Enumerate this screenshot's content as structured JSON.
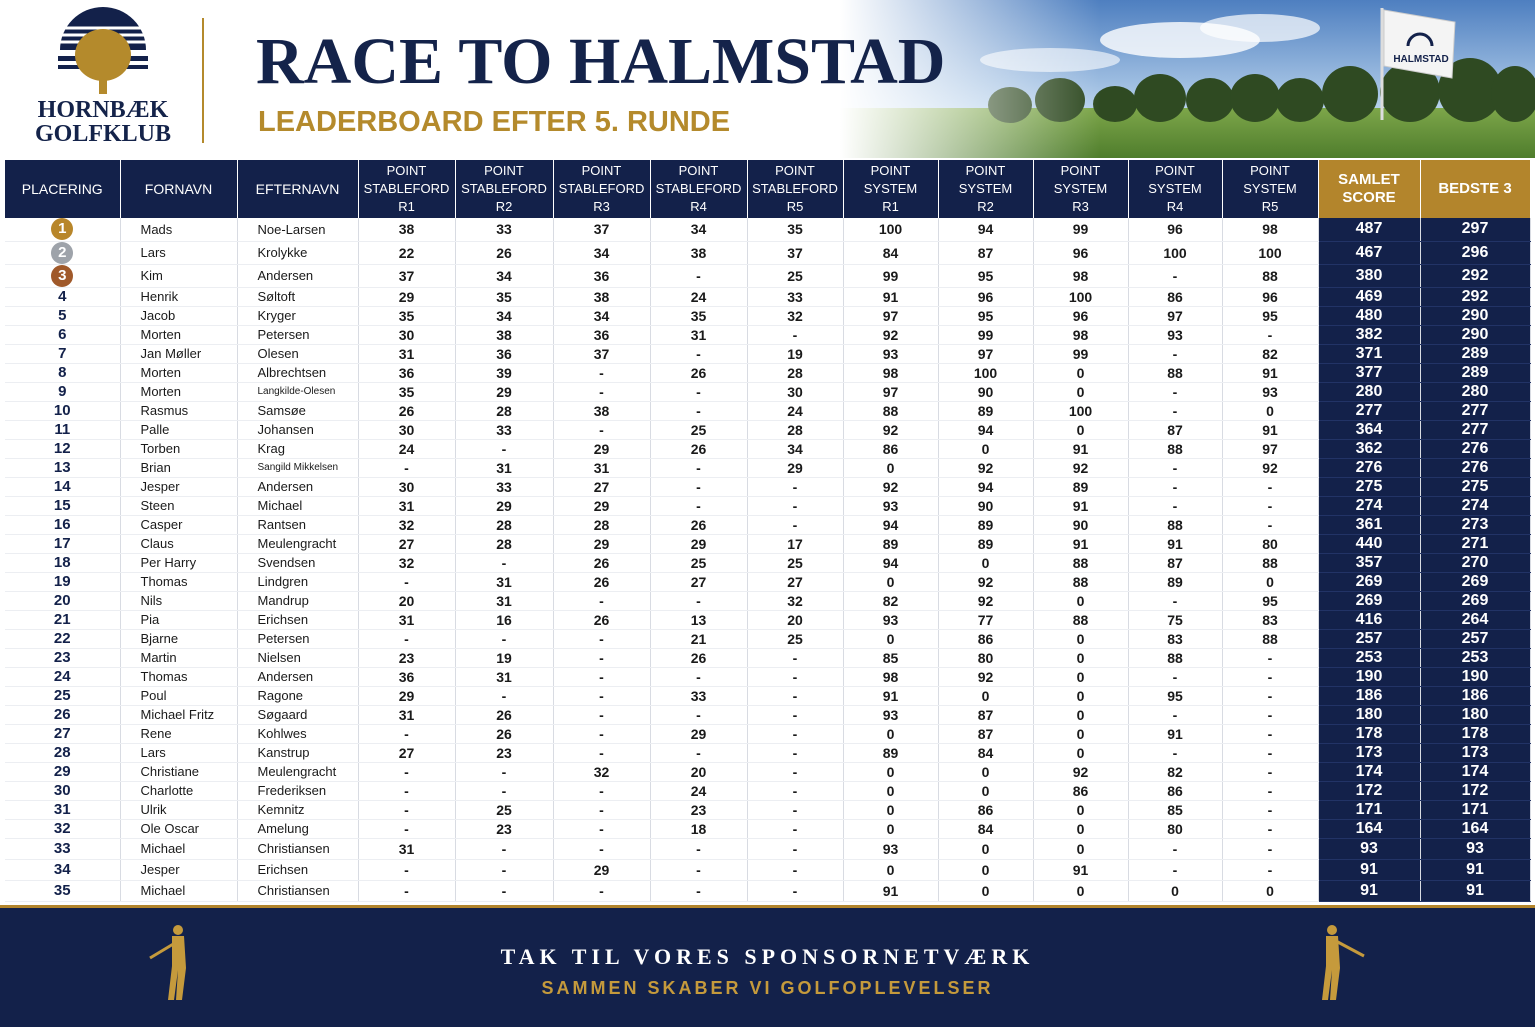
{
  "header": {
    "club_name": "HORNBÆK GOLFKLUB",
    "title": "RACE TO HALMSTAD",
    "subtitle": "LEADERBOARD EFTER 5. RUNDE",
    "flag_text": "HALMSTAD"
  },
  "table": {
    "columns": [
      "PLACERING",
      "FORNAVN",
      "EFTERNAVN",
      "POINT STABLEFORD R1",
      "POINT STABLEFORD R2",
      "POINT STABLEFORD R3",
      "POINT STABLEFORD R4",
      "POINT STABLEFORD R5",
      "POINT SYSTEM R1",
      "POINT SYSTEM R2",
      "POINT SYSTEM R3",
      "POINT SYSTEM R4",
      "POINT SYSTEM R5",
      "SAMLET SCORE",
      "BEDSTE 3"
    ],
    "rows": [
      [
        "1",
        "Mads",
        "Noe-Larsen",
        "38",
        "33",
        "37",
        "34",
        "35",
        "100",
        "94",
        "99",
        "96",
        "98",
        "487",
        "297"
      ],
      [
        "2",
        "Lars",
        "Krolykke",
        "22",
        "26",
        "34",
        "38",
        "37",
        "84",
        "87",
        "96",
        "100",
        "100",
        "467",
        "296"
      ],
      [
        "3",
        "Kim",
        "Andersen",
        "37",
        "34",
        "36",
        "-",
        "25",
        "99",
        "95",
        "98",
        "-",
        "88",
        "380",
        "292"
      ],
      [
        "4",
        "Henrik",
        "Søltoft",
        "29",
        "35",
        "38",
        "24",
        "33",
        "91",
        "96",
        "100",
        "86",
        "96",
        "469",
        "292"
      ],
      [
        "5",
        "Jacob",
        "Kryger",
        "35",
        "34",
        "34",
        "35",
        "32",
        "97",
        "95",
        "96",
        "97",
        "95",
        "480",
        "290"
      ],
      [
        "6",
        "Morten",
        "Petersen",
        "30",
        "38",
        "36",
        "31",
        "-",
        "92",
        "99",
        "98",
        "93",
        "-",
        "382",
        "290"
      ],
      [
        "7",
        "Jan Møller",
        "Olesen",
        "31",
        "36",
        "37",
        "-",
        "19",
        "93",
        "97",
        "99",
        "-",
        "82",
        "371",
        "289"
      ],
      [
        "8",
        "Morten",
        "Albrechtsen",
        "36",
        "39",
        "-",
        "26",
        "28",
        "98",
        "100",
        "0",
        "88",
        "91",
        "377",
        "289"
      ],
      [
        "9",
        "Morten",
        "Langkilde-Olesen",
        "35",
        "29",
        "-",
        "-",
        "30",
        "97",
        "90",
        "0",
        "-",
        "93",
        "280",
        "280"
      ],
      [
        "10",
        "Rasmus",
        "Samsøe",
        "26",
        "28",
        "38",
        "-",
        "24",
        "88",
        "89",
        "100",
        "-",
        "0",
        "277",
        "277"
      ],
      [
        "11",
        "Palle",
        "Johansen",
        "30",
        "33",
        "-",
        "25",
        "28",
        "92",
        "94",
        "0",
        "87",
        "91",
        "364",
        "277"
      ],
      [
        "12",
        "Torben",
        "Krag",
        "24",
        "-",
        "29",
        "26",
        "34",
        "86",
        "0",
        "91",
        "88",
        "97",
        "362",
        "276"
      ],
      [
        "13",
        "Brian",
        "Sangild Mikkelsen",
        "-",
        "31",
        "31",
        "-",
        "29",
        "0",
        "92",
        "92",
        "-",
        "92",
        "276",
        "276"
      ],
      [
        "14",
        "Jesper",
        "Andersen",
        "30",
        "33",
        "27",
        "-",
        "-",
        "92",
        "94",
        "89",
        "-",
        "-",
        "275",
        "275"
      ],
      [
        "15",
        "Steen",
        "Michael",
        "31",
        "29",
        "29",
        "-",
        "-",
        "93",
        "90",
        "91",
        "-",
        "-",
        "274",
        "274"
      ],
      [
        "16",
        "Casper",
        "Rantsen",
        "32",
        "28",
        "28",
        "26",
        "-",
        "94",
        "89",
        "90",
        "88",
        "-",
        "361",
        "273"
      ],
      [
        "17",
        "Claus",
        "Meulengracht",
        "27",
        "28",
        "29",
        "29",
        "17",
        "89",
        "89",
        "91",
        "91",
        "80",
        "440",
        "271"
      ],
      [
        "18",
        "Per Harry",
        "Svendsen",
        "32",
        "-",
        "26",
        "25",
        "25",
        "94",
        "0",
        "88",
        "87",
        "88",
        "357",
        "270"
      ],
      [
        "19",
        "Thomas",
        "Lindgren",
        "-",
        "31",
        "26",
        "27",
        "27",
        "0",
        "92",
        "88",
        "89",
        "0",
        "269",
        "269"
      ],
      [
        "20",
        "Nils",
        "Mandrup",
        "20",
        "31",
        "-",
        "-",
        "32",
        "82",
        "92",
        "0",
        "-",
        "95",
        "269",
        "269"
      ],
      [
        "21",
        "Pia",
        "Erichsen",
        "31",
        "16",
        "26",
        "13",
        "20",
        "93",
        "77",
        "88",
        "75",
        "83",
        "416",
        "264"
      ],
      [
        "22",
        "Bjarne",
        "Petersen",
        "-",
        "-",
        "-",
        "21",
        "25",
        "0",
        "86",
        "0",
        "83",
        "88",
        "257",
        "257"
      ],
      [
        "23",
        "Martin",
        "Nielsen",
        "23",
        "19",
        "-",
        "26",
        "-",
        "85",
        "80",
        "0",
        "88",
        "-",
        "253",
        "253"
      ],
      [
        "24",
        "Thomas",
        "Andersen",
        "36",
        "31",
        "-",
        "-",
        "-",
        "98",
        "92",
        "0",
        "-",
        "-",
        "190",
        "190"
      ],
      [
        "25",
        "Poul",
        "Ragone",
        "29",
        "-",
        "-",
        "33",
        "-",
        "91",
        "0",
        "0",
        "95",
        "-",
        "186",
        "186"
      ],
      [
        "26",
        "Michael Fritz",
        "Søgaard",
        "31",
        "26",
        "-",
        "-",
        "-",
        "93",
        "87",
        "0",
        "-",
        "-",
        "180",
        "180"
      ],
      [
        "27",
        "Rene",
        "Kohlwes",
        "-",
        "26",
        "-",
        "29",
        "-",
        "0",
        "87",
        "0",
        "91",
        "-",
        "178",
        "178"
      ],
      [
        "28",
        "Lars",
        "Kanstrup",
        "27",
        "23",
        "-",
        "-",
        "-",
        "89",
        "84",
        "0",
        "-",
        "-",
        "173",
        "173"
      ],
      [
        "29",
        "Christiane",
        "Meulengracht",
        "-",
        "-",
        "32",
        "20",
        "-",
        "0",
        "0",
        "92",
        "82",
        "-",
        "174",
        "174"
      ],
      [
        "30",
        "Charlotte",
        "Frederiksen",
        "-",
        "-",
        "-",
        "24",
        "-",
        "0",
        "0",
        "86",
        "86",
        "-",
        "172",
        "172"
      ],
      [
        "31",
        "Ulrik",
        "Kemnitz",
        "-",
        "25",
        "-",
        "23",
        "-",
        "0",
        "86",
        "0",
        "85",
        "-",
        "171",
        "171"
      ],
      [
        "32",
        "Ole Oscar",
        "Amelung",
        "-",
        "23",
        "-",
        "18",
        "-",
        "0",
        "84",
        "0",
        "80",
        "-",
        "164",
        "164"
      ],
      [
        "33",
        "Michael",
        "Christiansen",
        "31",
        "-",
        "-",
        "-",
        "-",
        "93",
        "0",
        "0",
        "-",
        "-",
        "93",
        "93"
      ],
      [
        "34",
        "Jesper",
        "Erichsen",
        "-",
        "-",
        "29",
        "-",
        "-",
        "0",
        "0",
        "91",
        "-",
        "-",
        "91",
        "91"
      ],
      [
        "35",
        "Michael",
        "Christiansen",
        "-",
        "-",
        "-",
        "-",
        "-",
        "91",
        "0",
        "0",
        "0",
        "0",
        "91",
        "91"
      ]
    ]
  },
  "footer": {
    "main": "TAK TIL VORES SPONSORNETVÆRK",
    "sub": "SAMMEN SKABER VI GOLFOPLEVELSER"
  }
}
